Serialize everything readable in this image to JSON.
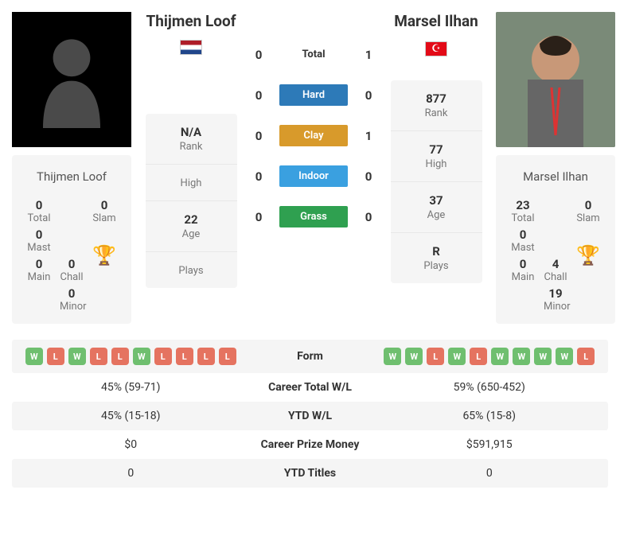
{
  "players": {
    "left": {
      "name": "Thijmen Loof",
      "flag": "nl",
      "titles": {
        "total": "0",
        "slam": "0",
        "mast": "0",
        "main": "0",
        "chall": "0",
        "minor": "0"
      },
      "stats": {
        "rank": "N/A",
        "high": "",
        "age": "22",
        "plays": ""
      }
    },
    "right": {
      "name": "Marsel Ilhan",
      "flag": "tr",
      "titles": {
        "total": "23",
        "slam": "0",
        "mast": "0",
        "main": "0",
        "chall": "4",
        "minor": "19"
      },
      "stats": {
        "rank": "877",
        "high": "77",
        "age": "37",
        "plays": "R"
      }
    }
  },
  "labels": {
    "total": "Total",
    "slam": "Slam",
    "mast": "Mast",
    "main": "Main",
    "chall": "Chall",
    "minor": "Minor",
    "rank": "Rank",
    "high": "High",
    "age": "Age",
    "plays": "Plays"
  },
  "h2h": {
    "rows": [
      {
        "left": "0",
        "label": "Total",
        "right": "1",
        "cls": "surf-total"
      },
      {
        "left": "0",
        "label": "Hard",
        "right": "0",
        "cls": "surf-hard"
      },
      {
        "left": "0",
        "label": "Clay",
        "right": "1",
        "cls": "surf-clay"
      },
      {
        "left": "0",
        "label": "Indoor",
        "right": "0",
        "cls": "surf-indoor"
      },
      {
        "left": "0",
        "label": "Grass",
        "right": "0",
        "cls": "surf-grass"
      }
    ]
  },
  "compare": {
    "rows": [
      {
        "key": "form",
        "label": "Form"
      },
      {
        "key": "career_wl",
        "label": "Career Total W/L",
        "left": "45% (59-71)",
        "right": "59% (650-452)"
      },
      {
        "key": "ytd_wl",
        "label": "YTD W/L",
        "left": "45% (15-18)",
        "right": "65% (15-8)"
      },
      {
        "key": "prize",
        "label": "Career Prize Money",
        "left": "$0",
        "right": "$591,915"
      },
      {
        "key": "ytd_titles",
        "label": "YTD Titles",
        "left": "0",
        "right": "0"
      }
    ]
  },
  "form": {
    "left": [
      "W",
      "L",
      "W",
      "L",
      "L",
      "W",
      "L",
      "L",
      "L",
      "L"
    ],
    "right": [
      "W",
      "W",
      "L",
      "W",
      "L",
      "W",
      "W",
      "W",
      "W",
      "L"
    ]
  }
}
